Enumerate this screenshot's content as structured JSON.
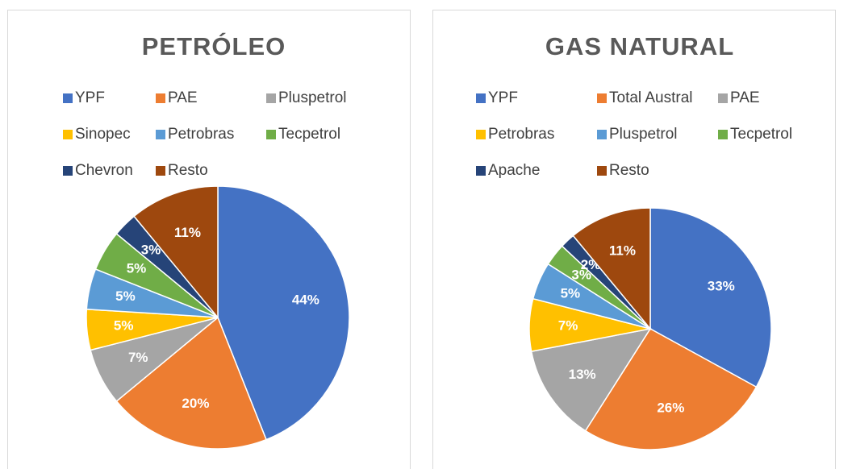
{
  "chart_data": [
    {
      "type": "pie",
      "title": "PETRÓLEO",
      "categories": [
        "YPF",
        "PAE",
        "Pluspetrol",
        "Sinopec",
        "Petrobras",
        "Tecpetrol",
        "Chevron",
        "Resto"
      ],
      "values": [
        44,
        20,
        7,
        5,
        5,
        5,
        3,
        11
      ],
      "value_labels": [
        "44%",
        "20%",
        "7%",
        "5%",
        "5%",
        "5%",
        "3%",
        "11%"
      ],
      "colors": [
        "#4472c4",
        "#ed7d31",
        "#a5a5a5",
        "#ffc000",
        "#5b9bd5",
        "#70ad47",
        "#264478",
        "#9e480e"
      ]
    },
    {
      "type": "pie",
      "title": "GAS NATURAL",
      "categories": [
        "YPF",
        "Total Austral",
        "PAE",
        "Petrobras",
        "Pluspetrol",
        "Tecpetrol",
        "Apache",
        "Resto"
      ],
      "values": [
        33,
        26,
        13,
        7,
        5,
        3,
        2,
        11
      ],
      "value_labels": [
        "33%",
        "26%",
        "13%",
        "7%",
        "5%",
        "3%",
        "2%",
        "11%"
      ],
      "colors": [
        "#4472c4",
        "#ed7d31",
        "#a5a5a5",
        "#ffc000",
        "#5b9bd5",
        "#70ad47",
        "#264478",
        "#9e480e"
      ]
    }
  ]
}
